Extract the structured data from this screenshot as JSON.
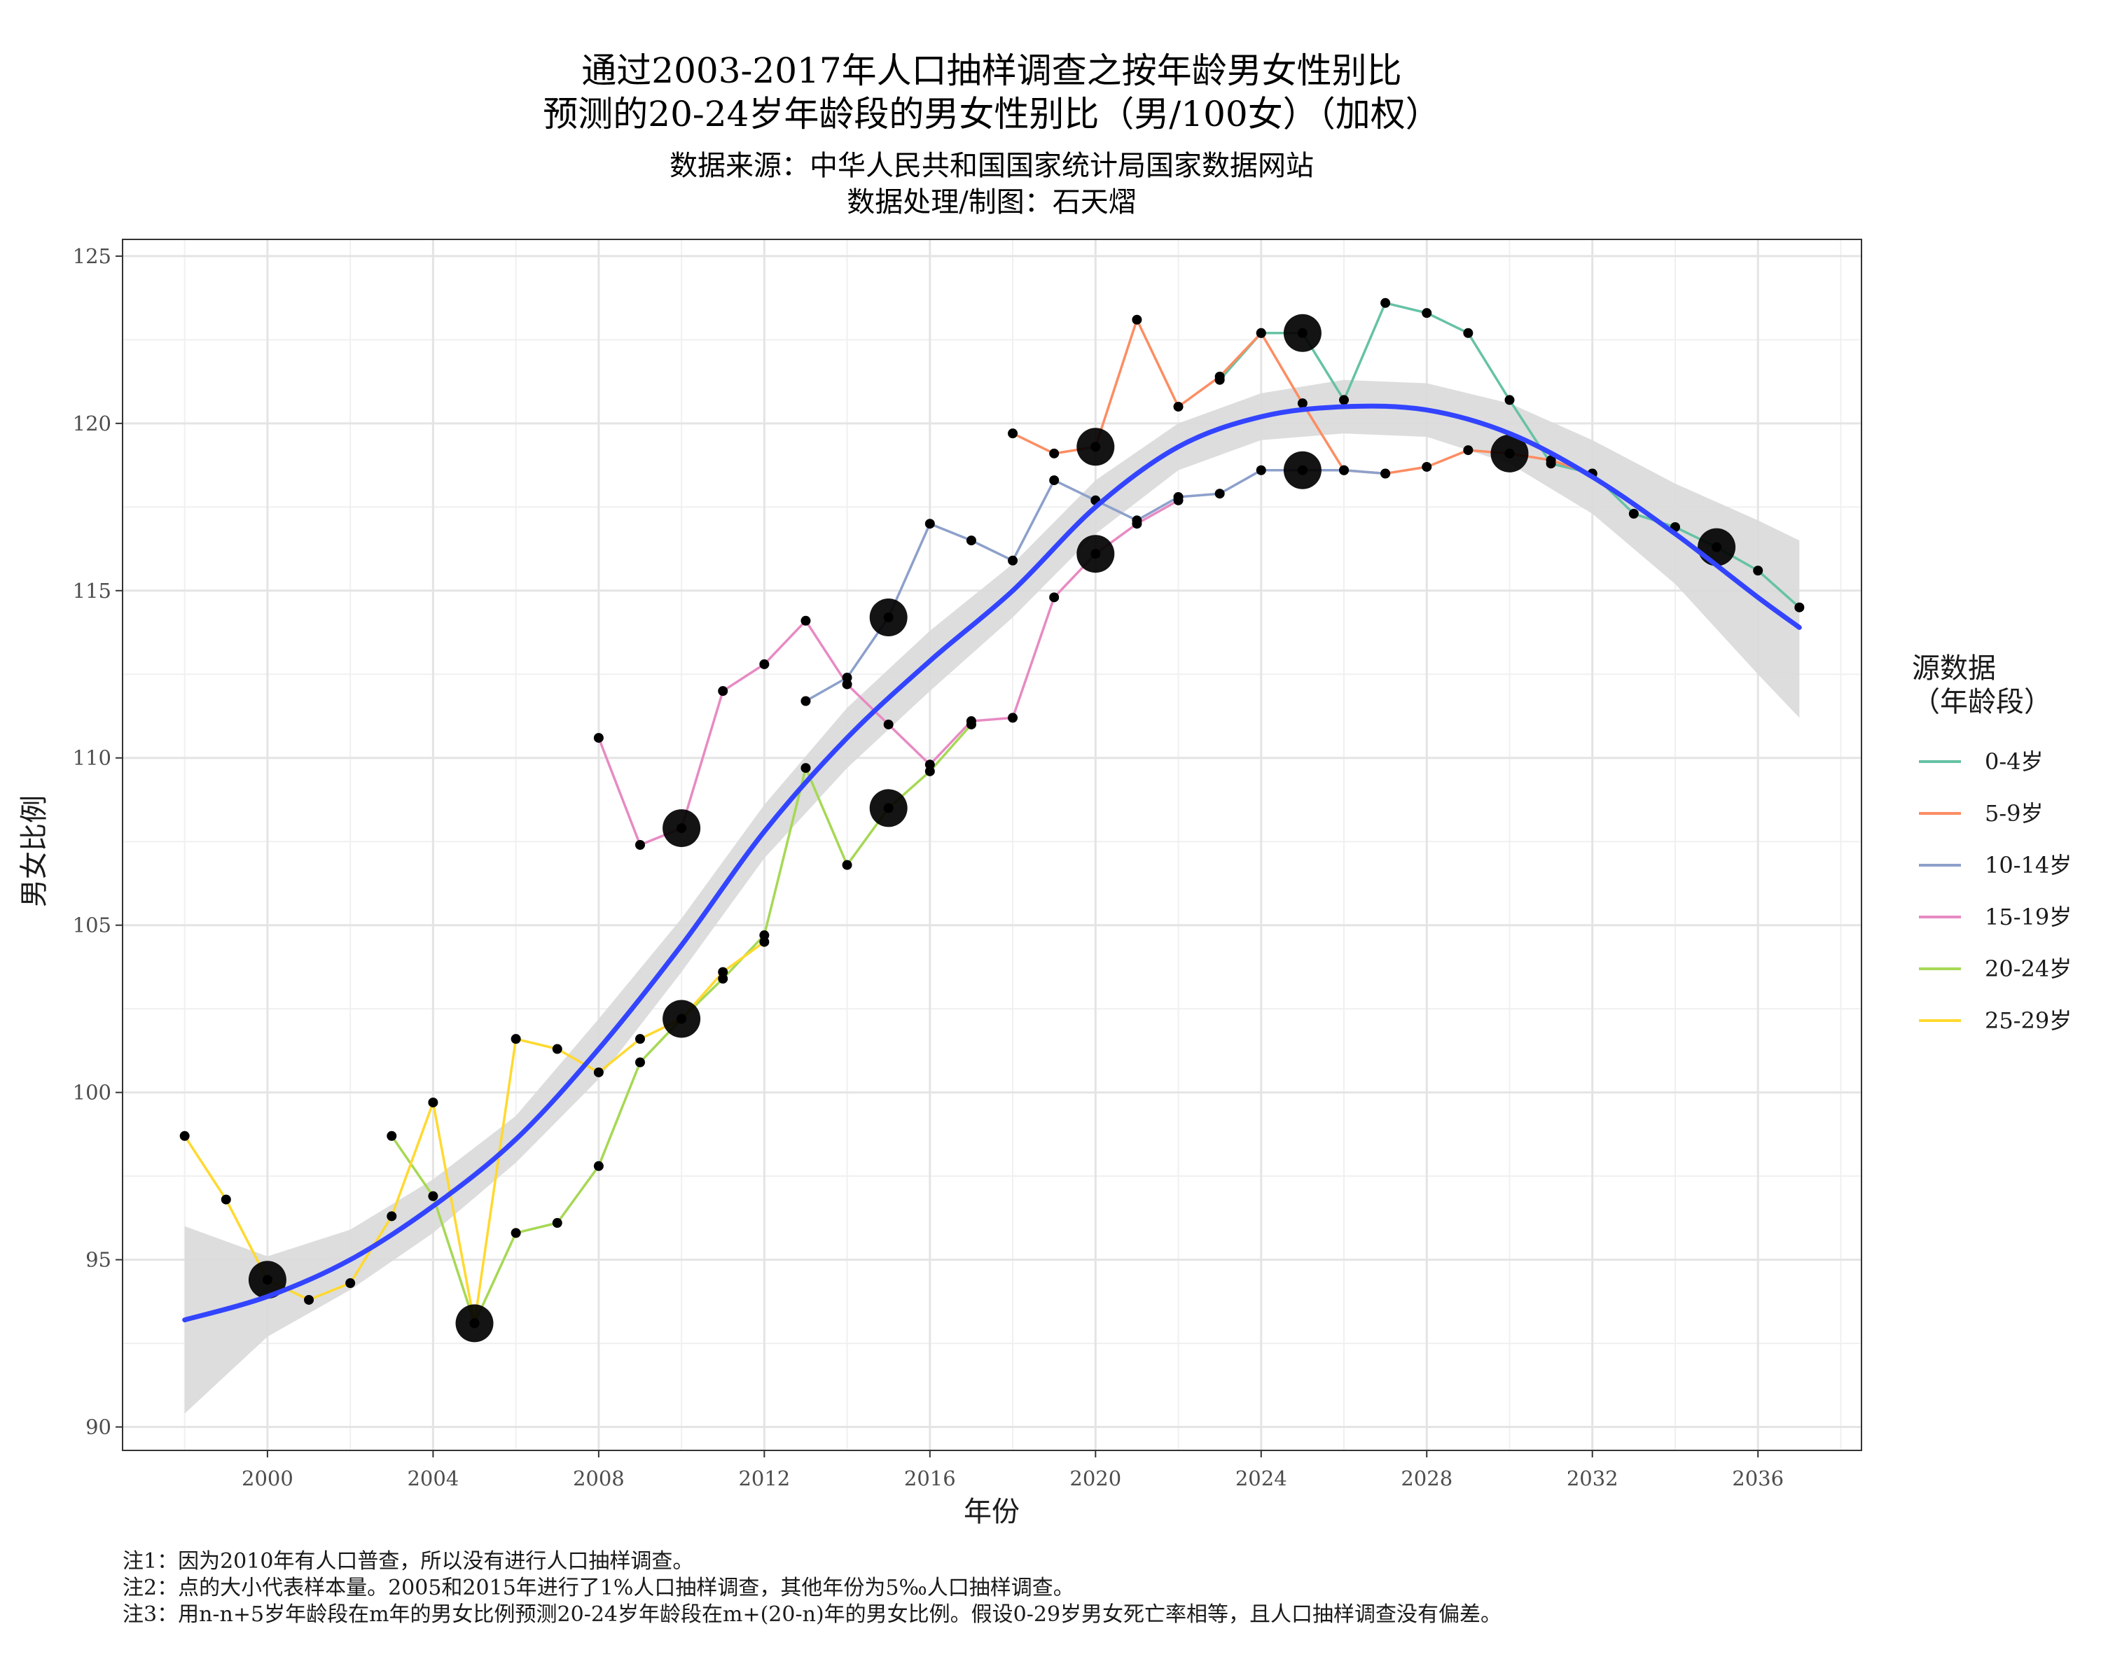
{
  "chart_data": {
    "type": "line",
    "title": "通过2003-2017年人口抽样调查之按年龄男女性别比",
    "title2": "预测的20-24岁年龄段的男女性别比（男/100女）（加权）",
    "subtitle": "数据来源：中华人民共和国国家统计局国家数据网站",
    "subtitle2": "数据处理/制图：石天熠",
    "xlabel": "年份",
    "ylabel": "男女比例",
    "xlim": [
      1996.5,
      2038.5
    ],
    "ylim": [
      89.3,
      125.5
    ],
    "x_ticks": [
      2000,
      2004,
      2008,
      2012,
      2016,
      2020,
      2024,
      2028,
      2032,
      2036
    ],
    "y_ticks": [
      90,
      95,
      100,
      105,
      110,
      115,
      120,
      125
    ],
    "grid": true,
    "legend_title": "源数据",
    "legend_title2": "（年龄段）",
    "legend_position": "right",
    "series": [
      {
        "name": "0-4岁",
        "color": "#66c2a5",
        "x": [
          2023,
          2024,
          2025,
          2026,
          2027,
          2028,
          2029,
          2030,
          2031,
          2032,
          2033,
          2034,
          2035,
          2036,
          2037
        ],
        "y": [
          121.3,
          122.7,
          122.7,
          120.7,
          123.6,
          123.3,
          122.7,
          120.7,
          118.8,
          118.5,
          117.3,
          116.9,
          116.3,
          115.6,
          114.5
        ]
      },
      {
        "name": "5-9岁",
        "color": "#fc8d62",
        "x": [
          2018,
          2019,
          2020,
          2021,
          2022,
          2023,
          2024,
          2025,
          2026,
          2027,
          2028,
          2029,
          2030,
          2031,
          2032
        ],
        "y": [
          119.7,
          119.1,
          119.3,
          123.1,
          120.5,
          121.4,
          122.7,
          120.6,
          118.6,
          118.5,
          118.7,
          119.2,
          119.1,
          118.9,
          118.5
        ]
      },
      {
        "name": "10-14岁",
        "color": "#8da0cb",
        "x": [
          2013,
          2014,
          2015,
          2016,
          2017,
          2018,
          2019,
          2020,
          2021,
          2022,
          2023,
          2024,
          2025,
          2026,
          2027
        ],
        "y": [
          111.7,
          112.4,
          114.2,
          117.0,
          116.5,
          115.9,
          118.3,
          117.7,
          117.1,
          117.8,
          117.9,
          118.6,
          118.6,
          118.6,
          118.5
        ]
      },
      {
        "name": "15-19岁",
        "color": "#e78ac3",
        "x": [
          2008,
          2009,
          2010,
          2011,
          2012,
          2013,
          2014,
          2015,
          2016,
          2017,
          2018,
          2019,
          2020,
          2021,
          2022
        ],
        "y": [
          110.6,
          107.4,
          107.9,
          112.0,
          112.8,
          114.1,
          112.2,
          111.0,
          109.8,
          111.1,
          111.2,
          114.8,
          116.1,
          117.0,
          117.7
        ]
      },
      {
        "name": "20-24岁",
        "color": "#a6d854",
        "x": [
          2003,
          2004,
          2005,
          2006,
          2007,
          2008,
          2009,
          2010,
          2011,
          2012,
          2013,
          2014,
          2015,
          2016,
          2017
        ],
        "y": [
          98.7,
          96.9,
          93.1,
          95.8,
          96.1,
          97.8,
          100.9,
          102.2,
          103.4,
          104.7,
          109.7,
          106.8,
          108.5,
          109.6,
          111.0
        ]
      },
      {
        "name": "25-29岁",
        "color": "#ffd92f",
        "x": [
          1998,
          1999,
          2000,
          2001,
          2002,
          2003,
          2004,
          2005,
          2006,
          2007,
          2008,
          2009,
          2010,
          2011,
          2012
        ],
        "y": [
          98.7,
          96.8,
          94.4,
          93.8,
          94.3,
          96.3,
          99.7,
          93.1,
          101.6,
          101.3,
          100.6,
          101.6,
          102.2,
          103.6,
          104.5
        ]
      }
    ],
    "large_points": {
      "x": [
        2000,
        2005,
        2010,
        2010,
        2015,
        2015,
        2020,
        2020,
        2025,
        2025,
        2030,
        2035
      ],
      "y": [
        94.4,
        93.1,
        107.9,
        102.2,
        114.2,
        108.5,
        119.3,
        116.1,
        122.7,
        118.6,
        119.1,
        116.3
      ]
    },
    "smooth_fit": {
      "name": "loess",
      "color": "#3344ff",
      "band_color": "#d9d9d9",
      "x": [
        1998,
        2000,
        2002,
        2004,
        2006,
        2008,
        2010,
        2012,
        2014,
        2016,
        2018,
        2020,
        2022,
        2024,
        2026,
        2028,
        2030,
        2032,
        2034,
        2036,
        2037
      ],
      "y": [
        93.2,
        93.9,
        95.0,
        96.6,
        98.6,
        101.3,
        104.4,
        107.8,
        110.6,
        112.9,
        115.0,
        117.5,
        119.3,
        120.2,
        120.5,
        120.4,
        119.7,
        118.4,
        116.7,
        114.8,
        113.9
      ],
      "lower": [
        90.4,
        92.7,
        94.1,
        95.8,
        97.9,
        100.4,
        103.6,
        107.0,
        109.7,
        112.0,
        114.2,
        116.7,
        118.6,
        119.5,
        119.7,
        119.6,
        118.8,
        117.3,
        115.2,
        112.5,
        111.2
      ],
      "upper": [
        96.0,
        95.1,
        95.9,
        97.4,
        99.3,
        102.2,
        105.2,
        108.6,
        111.5,
        113.8,
        115.8,
        118.3,
        120.0,
        120.9,
        121.3,
        121.2,
        120.6,
        119.5,
        118.2,
        117.1,
        116.5
      ]
    },
    "notes": [
      "注1：因为2010年有人口普查，所以没有进行人口抽样调查。",
      "注2：点的大小代表样本量。2005和2015年进行了1%人口抽样调查，其他年份为5‰人口抽样调查。",
      "注3：用n-n+5岁年龄段在m年的男女比例预测20-24岁年龄段在m+(20-n)年的男女比例。假设0-29岁男女死亡率相等，且人口抽样调查没有偏差。"
    ]
  }
}
